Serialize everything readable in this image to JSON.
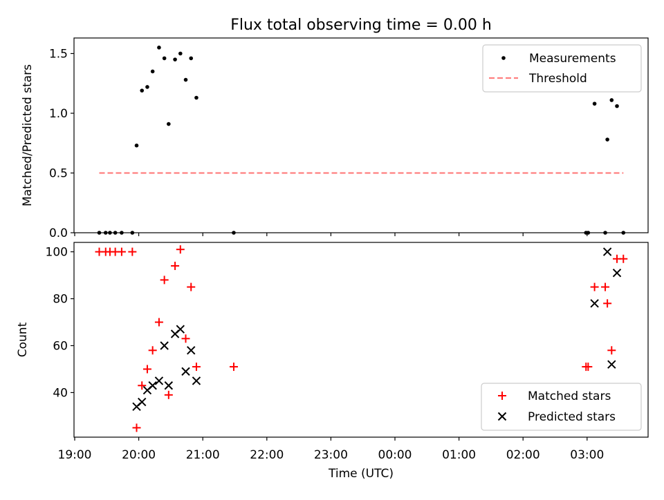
{
  "figure": {
    "title": "Flux total observing time = 0.00 h"
  },
  "chart_data": [
    {
      "type": "scatter",
      "panel": "top",
      "title": "Flux total observing time = 0.00 h",
      "xlabel": "",
      "ylabel": "Matched/Predicted stars",
      "x_axis_type": "time",
      "xlim": [
        "19:00",
        "04:00"
      ],
      "ylim": [
        0,
        1.63
      ],
      "yticks": [
        0.0,
        0.5,
        1.0,
        1.5
      ],
      "ytick_labels": [
        "0.0",
        "0.5",
        "1.0",
        "1.5"
      ],
      "grid": false,
      "legend_position": "top-right",
      "series": [
        {
          "name": "Measurements",
          "kind": "scatter",
          "marker": "dot",
          "color": "#000000",
          "points": [
            [
              "19:23",
              0.0
            ],
            [
              "19:29",
              0.0
            ],
            [
              "19:33",
              0.0
            ],
            [
              "19:38",
              0.0
            ],
            [
              "19:44",
              0.0
            ],
            [
              "19:54",
              0.0
            ],
            [
              "19:58",
              0.73
            ],
            [
              "20:03",
              1.19
            ],
            [
              "20:08",
              1.22
            ],
            [
              "20:13",
              1.35
            ],
            [
              "20:19",
              1.55
            ],
            [
              "20:24",
              1.46
            ],
            [
              "20:28",
              0.91
            ],
            [
              "20:34",
              1.45
            ],
            [
              "20:39",
              1.5
            ],
            [
              "20:44",
              1.28
            ],
            [
              "20:49",
              1.46
            ],
            [
              "20:54",
              1.13
            ],
            [
              "21:29",
              0.0
            ],
            [
              "02:59",
              0.0
            ],
            [
              "03:01",
              0.0
            ],
            [
              "03:07",
              1.08
            ],
            [
              "03:17",
              0.0
            ],
            [
              "03:19",
              0.78
            ],
            [
              "03:23",
              1.11
            ],
            [
              "03:28",
              1.06
            ],
            [
              "03:34",
              0.0
            ]
          ]
        },
        {
          "name": "Threshold",
          "kind": "line",
          "style": "dashed",
          "color": "#ff7f7f",
          "points": [
            [
              "19:23",
              0.5
            ],
            [
              "03:34",
              0.5
            ]
          ]
        }
      ]
    },
    {
      "type": "scatter",
      "panel": "bottom",
      "xlabel": "Time (UTC)",
      "ylabel": "Count",
      "x_axis_type": "time",
      "xlim": [
        "19:00",
        "04:00"
      ],
      "ylim": [
        21,
        104
      ],
      "xticks": [
        "19:00",
        "20:00",
        "21:00",
        "22:00",
        "23:00",
        "00:00",
        "01:00",
        "02:00",
        "03:00"
      ],
      "yticks": [
        40,
        60,
        80,
        100
      ],
      "ytick_labels": [
        "40",
        "60",
        "80",
        "100"
      ],
      "grid": false,
      "legend_position": "bottom-right",
      "series": [
        {
          "name": "Matched stars",
          "marker": "plus",
          "color": "#ff0000",
          "points": [
            [
              "19:23",
              100
            ],
            [
              "19:29",
              100
            ],
            [
              "19:33",
              100
            ],
            [
              "19:38",
              100
            ],
            [
              "19:44",
              100
            ],
            [
              "19:54",
              100
            ],
            [
              "19:58",
              25
            ],
            [
              "20:03",
              43
            ],
            [
              "20:08",
              50
            ],
            [
              "20:13",
              58
            ],
            [
              "20:19",
              70
            ],
            [
              "20:24",
              88
            ],
            [
              "20:28",
              39
            ],
            [
              "20:34",
              94
            ],
            [
              "20:39",
              101
            ],
            [
              "20:44",
              63
            ],
            [
              "20:49",
              85
            ],
            [
              "20:54",
              51
            ],
            [
              "21:29",
              51
            ],
            [
              "02:59",
              51
            ],
            [
              "03:01",
              51
            ],
            [
              "03:07",
              85
            ],
            [
              "03:17",
              85
            ],
            [
              "03:19",
              78
            ],
            [
              "03:23",
              58
            ],
            [
              "03:28",
              97
            ],
            [
              "03:34",
              97
            ]
          ]
        },
        {
          "name": "Predicted stars",
          "marker": "x",
          "color": "#000000",
          "points": [
            [
              "19:58",
              34
            ],
            [
              "20:03",
              36
            ],
            [
              "20:08",
              41
            ],
            [
              "20:13",
              43
            ],
            [
              "20:19",
              45
            ],
            [
              "20:24",
              60
            ],
            [
              "20:28",
              43
            ],
            [
              "20:34",
              65
            ],
            [
              "20:39",
              67
            ],
            [
              "20:44",
              49
            ],
            [
              "20:49",
              58
            ],
            [
              "20:54",
              45
            ],
            [
              "03:07",
              78
            ],
            [
              "03:19",
              100
            ],
            [
              "03:23",
              52
            ],
            [
              "03:28",
              91
            ]
          ]
        }
      ]
    }
  ]
}
